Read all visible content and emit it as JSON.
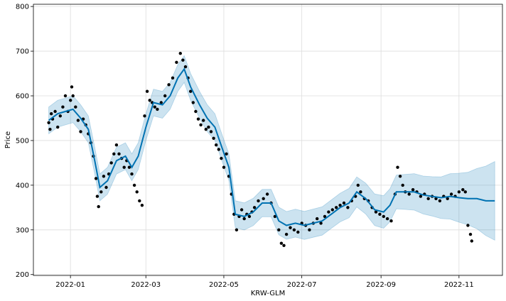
{
  "chart_data": {
    "type": "scatter",
    "xlabel": "KRW-GLM",
    "ylabel": "Price",
    "x_range": [
      "2021-12-03",
      "2022-12-05"
    ],
    "ylim": [
      198,
      805
    ],
    "x_ticks": [
      "2022-01",
      "2022-03",
      "2022-05",
      "2022-07",
      "2022-09",
      "2022-11"
    ],
    "y_ticks": [
      200,
      300,
      400,
      500,
      600,
      700,
      800
    ],
    "grid": true,
    "colors": {
      "observed": "#000000",
      "forecast": "#0072B2",
      "band": "#0072B2"
    },
    "observed": [
      [
        "2021-12-15",
        540
      ],
      [
        "2021-12-16",
        525
      ],
      [
        "2021-12-17",
        560
      ],
      [
        "2021-12-18",
        548
      ],
      [
        "2021-12-20",
        565
      ],
      [
        "2021-12-22",
        530
      ],
      [
        "2021-12-24",
        555
      ],
      [
        "2021-12-26",
        575
      ],
      [
        "2021-12-28",
        600
      ],
      [
        "2021-12-30",
        565
      ],
      [
        "2022-01-01",
        590
      ],
      [
        "2022-01-02",
        620
      ],
      [
        "2022-01-03",
        600
      ],
      [
        "2022-01-05",
        575
      ],
      [
        "2022-01-07",
        545
      ],
      [
        "2022-01-09",
        520
      ],
      [
        "2022-01-11",
        548
      ],
      [
        "2022-01-13",
        535
      ],
      [
        "2022-01-15",
        515
      ],
      [
        "2022-01-17",
        495
      ],
      [
        "2022-01-19",
        465
      ],
      [
        "2022-01-21",
        415
      ],
      [
        "2022-01-22",
        375
      ],
      [
        "2022-01-23",
        352
      ],
      [
        "2022-01-25",
        385
      ],
      [
        "2022-01-27",
        420
      ],
      [
        "2022-01-29",
        395
      ],
      [
        "2022-01-31",
        425
      ],
      [
        "2022-02-02",
        450
      ],
      [
        "2022-02-04",
        470
      ],
      [
        "2022-02-06",
        490
      ],
      [
        "2022-02-08",
        470
      ],
      [
        "2022-02-10",
        460
      ],
      [
        "2022-02-12",
        440
      ],
      [
        "2022-02-14",
        455
      ],
      [
        "2022-02-16",
        440
      ],
      [
        "2022-02-18",
        425
      ],
      [
        "2022-02-20",
        400
      ],
      [
        "2022-02-22",
        385
      ],
      [
        "2022-02-24",
        365
      ],
      [
        "2022-02-26",
        355
      ],
      [
        "2022-02-28",
        555
      ],
      [
        "2022-03-02",
        610
      ],
      [
        "2022-03-04",
        590
      ],
      [
        "2022-03-06",
        585
      ],
      [
        "2022-03-08",
        575
      ],
      [
        "2022-03-10",
        570
      ],
      [
        "2022-03-13",
        585
      ],
      [
        "2022-03-16",
        600
      ],
      [
        "2022-03-19",
        625
      ],
      [
        "2022-03-22",
        640
      ],
      [
        "2022-03-25",
        675
      ],
      [
        "2022-03-28",
        695
      ],
      [
        "2022-03-30",
        680
      ],
      [
        "2022-04-01",
        665
      ],
      [
        "2022-04-03",
        640
      ],
      [
        "2022-04-05",
        610
      ],
      [
        "2022-04-07",
        585
      ],
      [
        "2022-04-09",
        565
      ],
      [
        "2022-04-11",
        548
      ],
      [
        "2022-04-13",
        535
      ],
      [
        "2022-04-15",
        545
      ],
      [
        "2022-04-17",
        525
      ],
      [
        "2022-04-19",
        530
      ],
      [
        "2022-04-21",
        520
      ],
      [
        "2022-04-23",
        505
      ],
      [
        "2022-04-25",
        490
      ],
      [
        "2022-04-27",
        480
      ],
      [
        "2022-04-29",
        460
      ],
      [
        "2022-05-01",
        440
      ],
      [
        "2022-05-03",
        470
      ],
      [
        "2022-05-05",
        420
      ],
      [
        "2022-05-07",
        380
      ],
      [
        "2022-05-09",
        335
      ],
      [
        "2022-05-11",
        300
      ],
      [
        "2022-05-13",
        330
      ],
      [
        "2022-05-15",
        345
      ],
      [
        "2022-05-17",
        325
      ],
      [
        "2022-05-19",
        335
      ],
      [
        "2022-05-21",
        330
      ],
      [
        "2022-05-23",
        340
      ],
      [
        "2022-05-25",
        350
      ],
      [
        "2022-05-28",
        365
      ],
      [
        "2022-06-01",
        370
      ],
      [
        "2022-06-04",
        380
      ],
      [
        "2022-06-07",
        360
      ],
      [
        "2022-06-10",
        330
      ],
      [
        "2022-06-13",
        300
      ],
      [
        "2022-06-15",
        270
      ],
      [
        "2022-06-17",
        265
      ],
      [
        "2022-06-19",
        290
      ],
      [
        "2022-06-22",
        305
      ],
      [
        "2022-06-25",
        300
      ],
      [
        "2022-06-28",
        295
      ],
      [
        "2022-07-01",
        315
      ],
      [
        "2022-07-04",
        310
      ],
      [
        "2022-07-07",
        300
      ],
      [
        "2022-07-10",
        315
      ],
      [
        "2022-07-13",
        325
      ],
      [
        "2022-07-16",
        315
      ],
      [
        "2022-07-19",
        330
      ],
      [
        "2022-07-22",
        340
      ],
      [
        "2022-07-25",
        345
      ],
      [
        "2022-07-28",
        350
      ],
      [
        "2022-07-31",
        355
      ],
      [
        "2022-08-03",
        360
      ],
      [
        "2022-08-06",
        350
      ],
      [
        "2022-08-09",
        365
      ],
      [
        "2022-08-12",
        375
      ],
      [
        "2022-08-14",
        400
      ],
      [
        "2022-08-16",
        385
      ],
      [
        "2022-08-19",
        370
      ],
      [
        "2022-08-22",
        365
      ],
      [
        "2022-08-25",
        350
      ],
      [
        "2022-08-28",
        340
      ],
      [
        "2022-08-31",
        335
      ],
      [
        "2022-09-03",
        330
      ],
      [
        "2022-09-06",
        325
      ],
      [
        "2022-09-09",
        320
      ],
      [
        "2022-09-12",
        380
      ],
      [
        "2022-09-14",
        440
      ],
      [
        "2022-09-16",
        420
      ],
      [
        "2022-09-18",
        400
      ],
      [
        "2022-09-20",
        385
      ],
      [
        "2022-09-23",
        380
      ],
      [
        "2022-09-26",
        390
      ],
      [
        "2022-09-29",
        385
      ],
      [
        "2022-10-02",
        375
      ],
      [
        "2022-10-05",
        380
      ],
      [
        "2022-10-08",
        370
      ],
      [
        "2022-10-11",
        375
      ],
      [
        "2022-10-14",
        370
      ],
      [
        "2022-10-17",
        365
      ],
      [
        "2022-10-20",
        375
      ],
      [
        "2022-10-23",
        370
      ],
      [
        "2022-10-26",
        380
      ],
      [
        "2022-10-29",
        375
      ],
      [
        "2022-11-01",
        385
      ],
      [
        "2022-11-04",
        390
      ],
      [
        "2022-11-06",
        385
      ],
      [
        "2022-11-08",
        310
      ],
      [
        "2022-11-10",
        290
      ],
      [
        "2022-11-11",
        275
      ]
    ],
    "forecast": [
      [
        "2021-12-15",
        545
      ],
      [
        "2021-12-22",
        560
      ],
      [
        "2021-12-28",
        565
      ],
      [
        "2022-01-03",
        570
      ],
      [
        "2022-01-09",
        550
      ],
      [
        "2022-01-15",
        525
      ],
      [
        "2022-01-20",
        455
      ],
      [
        "2022-01-24",
        395
      ],
      [
        "2022-01-30",
        410
      ],
      [
        "2022-02-06",
        455
      ],
      [
        "2022-02-13",
        465
      ],
      [
        "2022-02-18",
        440
      ],
      [
        "2022-02-23",
        465
      ],
      [
        "2022-03-01",
        530
      ],
      [
        "2022-03-07",
        585
      ],
      [
        "2022-03-14",
        580
      ],
      [
        "2022-03-20",
        600
      ],
      [
        "2022-03-26",
        640
      ],
      [
        "2022-03-31",
        660
      ],
      [
        "2022-04-05",
        620
      ],
      [
        "2022-04-12",
        580
      ],
      [
        "2022-04-18",
        550
      ],
      [
        "2022-04-24",
        530
      ],
      [
        "2022-04-30",
        480
      ],
      [
        "2022-05-05",
        440
      ],
      [
        "2022-05-10",
        335
      ],
      [
        "2022-05-17",
        330
      ],
      [
        "2022-05-24",
        340
      ],
      [
        "2022-05-31",
        360
      ],
      [
        "2022-06-07",
        360
      ],
      [
        "2022-06-13",
        320
      ],
      [
        "2022-06-19",
        310
      ],
      [
        "2022-06-26",
        315
      ],
      [
        "2022-07-03",
        310
      ],
      [
        "2022-07-10",
        315
      ],
      [
        "2022-07-17",
        320
      ],
      [
        "2022-07-24",
        335
      ],
      [
        "2022-07-31",
        350
      ],
      [
        "2022-08-07",
        360
      ],
      [
        "2022-08-13",
        385
      ],
      [
        "2022-08-20",
        370
      ],
      [
        "2022-08-27",
        345
      ],
      [
        "2022-09-03",
        340
      ],
      [
        "2022-09-08",
        355
      ],
      [
        "2022-09-13",
        385
      ],
      [
        "2022-09-20",
        385
      ],
      [
        "2022-09-27",
        385
      ],
      [
        "2022-10-04",
        378
      ],
      [
        "2022-10-11",
        375
      ],
      [
        "2022-10-18",
        372
      ],
      [
        "2022-10-25",
        375
      ],
      [
        "2022-11-01",
        372
      ],
      [
        "2022-11-08",
        370
      ],
      [
        "2022-11-15",
        370
      ],
      [
        "2022-11-22",
        365
      ],
      [
        "2022-11-29",
        365
      ]
    ],
    "band_halfwidth": [
      [
        "2021-12-15",
        30
      ],
      [
        "2022-05-01",
        30
      ],
      [
        "2022-08-01",
        32
      ],
      [
        "2022-09-15",
        38
      ],
      [
        "2022-10-15",
        45
      ],
      [
        "2022-11-10",
        60
      ],
      [
        "2022-11-29",
        88
      ]
    ]
  }
}
